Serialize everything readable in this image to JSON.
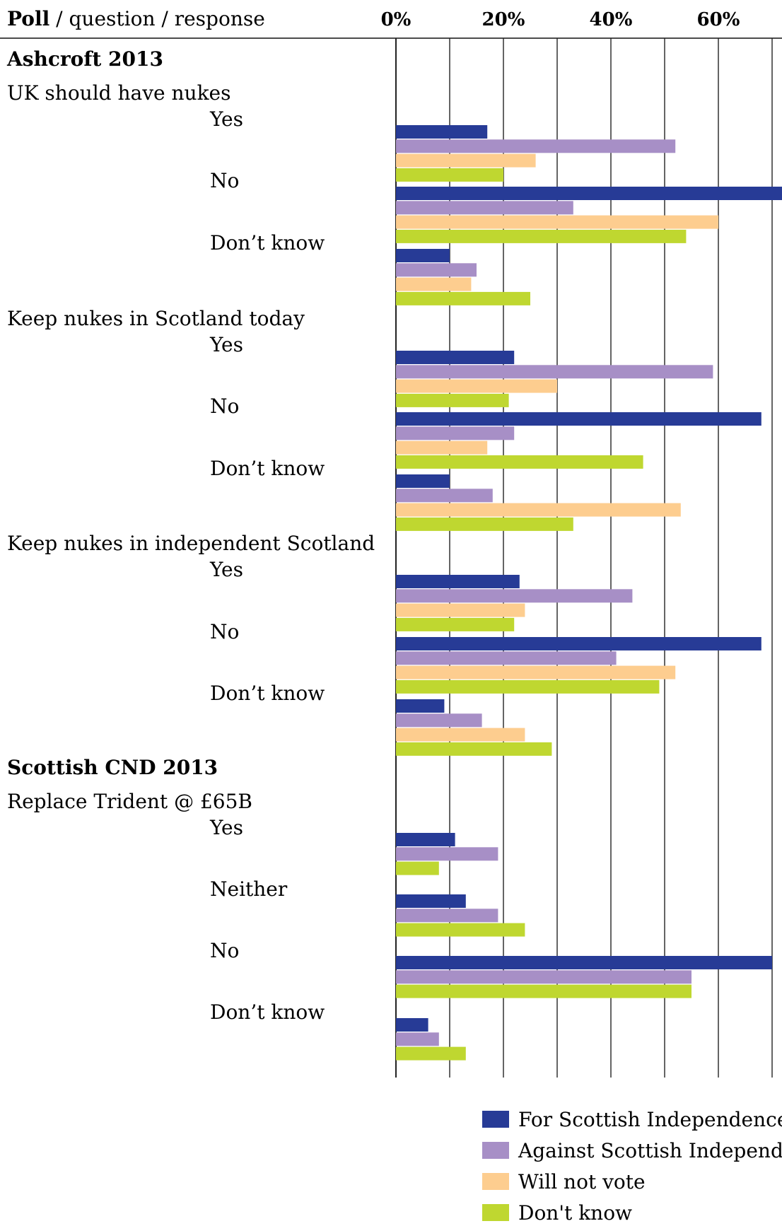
{
  "header": {
    "title_bold": "Poll",
    "title_rest": " / question / response"
  },
  "chart_data": {
    "type": "bar",
    "orientation": "horizontal",
    "xlim": [
      0,
      72
    ],
    "ticks": [
      0,
      10,
      20,
      30,
      40,
      50,
      60,
      70
    ],
    "tick_labels": [
      {
        "value": 0,
        "label": "0%"
      },
      {
        "value": 20,
        "label": "20%"
      },
      {
        "value": 40,
        "label": "40%"
      },
      {
        "value": 60,
        "label": "60%"
      }
    ],
    "grid": true,
    "legend_position": "bottom-right",
    "series": [
      {
        "name": "For Scottish Independence",
        "color": "#273b96"
      },
      {
        "name": "Against Scottish Independence",
        "color": "#a78fc6"
      },
      {
        "name": "Will not vote",
        "color": "#fdcd8f"
      },
      {
        "name": "Don't know",
        "color": "#bfd730"
      }
    ],
    "polls": [
      {
        "name": "Ashcroft 2013",
        "questions": [
          {
            "question": "UK should have nukes",
            "responses": [
              {
                "label": "Yes",
                "values": [
                  17,
                  52,
                  26,
                  20
                ]
              },
              {
                "label": "No",
                "values": [
                  72,
                  33,
                  60,
                  54
                ]
              },
              {
                "label": "Don’t know",
                "values": [
                  10,
                  15,
                  14,
                  25
                ]
              }
            ]
          },
          {
            "question": "Keep nukes in Scotland today",
            "responses": [
              {
                "label": "Yes",
                "values": [
                  22,
                  59,
                  30,
                  21
                ]
              },
              {
                "label": "No",
                "values": [
                  68,
                  22,
                  17,
                  46
                ]
              },
              {
                "label": "Don’t know",
                "values": [
                  10,
                  18,
                  53,
                  33
                ]
              }
            ]
          },
          {
            "question": "Keep nukes in independent Scotland",
            "responses": [
              {
                "label": "Yes",
                "values": [
                  23,
                  44,
                  24,
                  22
                ]
              },
              {
                "label": "No",
                "values": [
                  68,
                  41,
                  52,
                  49
                ]
              },
              {
                "label": "Don’t know",
                "values": [
                  9,
                  16,
                  24,
                  29
                ]
              }
            ]
          }
        ]
      },
      {
        "name": "Scottish CND 2013",
        "questions": [
          {
            "question": "Replace Trident @ £65B",
            "responses": [
              {
                "label": "Yes",
                "values": [
                  11,
                  19,
                  null,
                  8
                ]
              },
              {
                "label": "Neither",
                "values": [
                  13,
                  19,
                  null,
                  24
                ]
              },
              {
                "label": "No",
                "values": [
                  70,
                  55,
                  null,
                  55
                ]
              },
              {
                "label": "Don’t know",
                "values": [
                  6,
                  8,
                  null,
                  13
                ]
              }
            ]
          }
        ]
      }
    ]
  }
}
